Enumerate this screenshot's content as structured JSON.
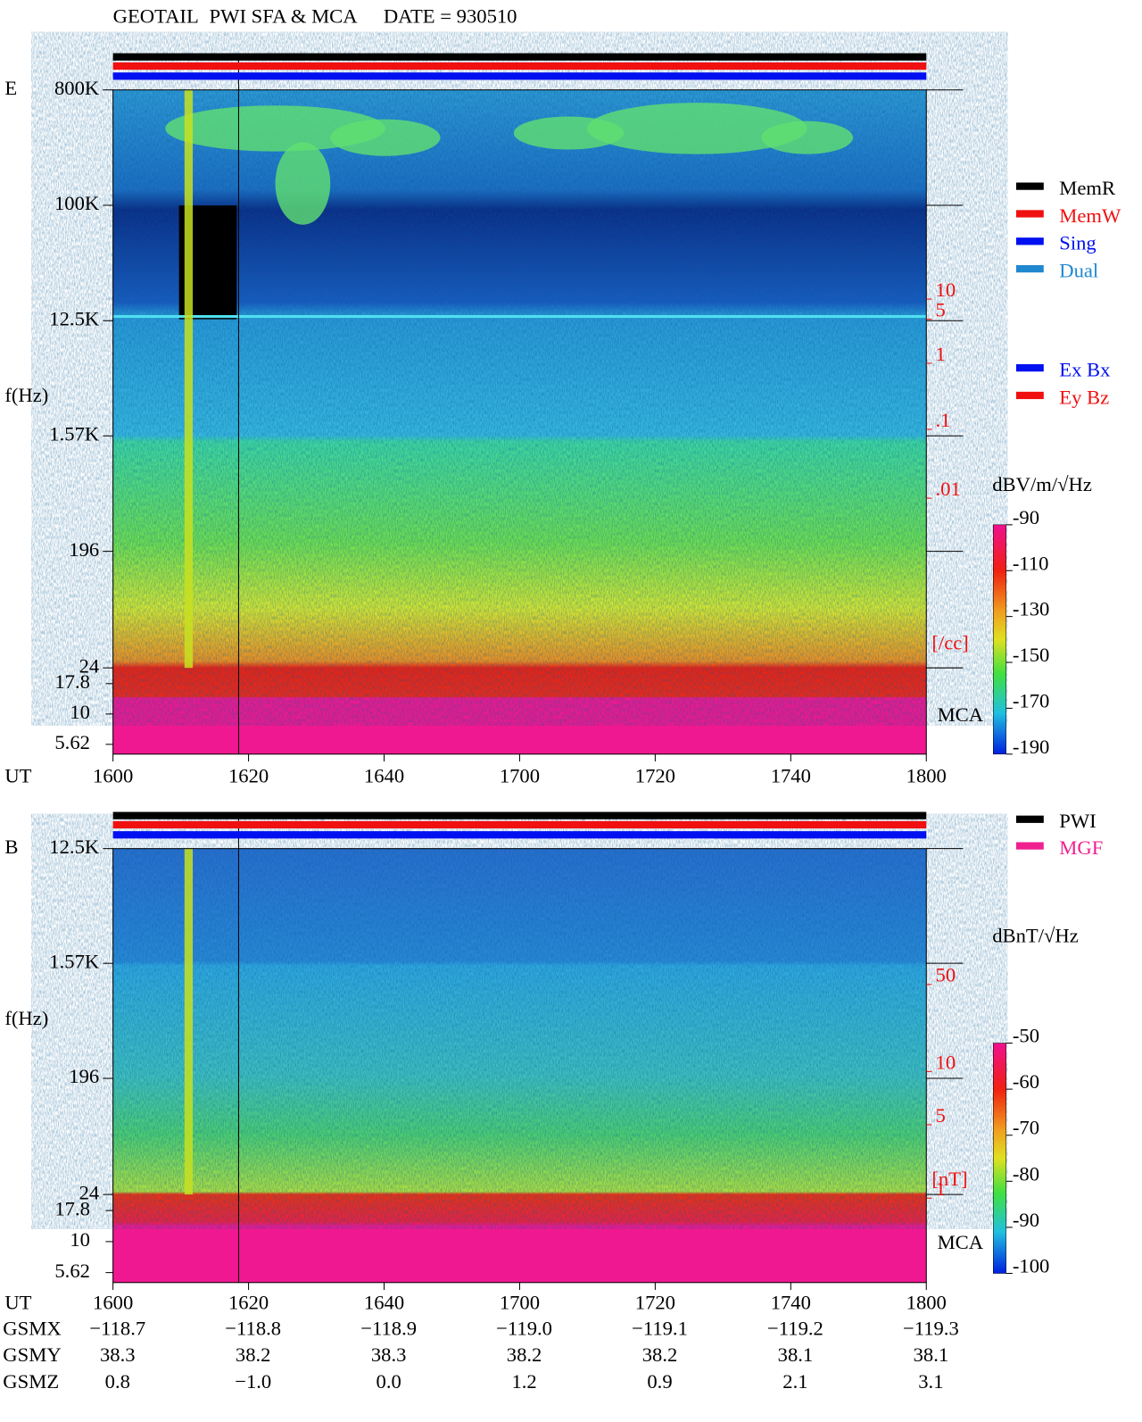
{
  "header": {
    "parts": [
      "GEOTAIL",
      "PWI SFA & MCA",
      "DATE = 930510"
    ]
  },
  "chart_data": [
    {
      "type": "spectrogram",
      "component": "E",
      "y_label": "f(Hz)",
      "x_label": "UT",
      "log_scale": true,
      "ylim": [
        24,
        800000
      ],
      "yticks": [
        {
          "value": 800000,
          "label": "800K"
        },
        {
          "value": 100000,
          "label": "100K"
        },
        {
          "value": 12500,
          "label": "12.5K"
        },
        {
          "value": 1570,
          "label": "1.57K"
        },
        196,
        24
      ],
      "mca_label": "MCA",
      "mca_ylim": [
        4.67,
        24
      ],
      "mca_ticks": [
        17.8,
        10,
        5.62
      ],
      "x_categories": [
        "1600",
        "1620",
        "1640",
        "1700",
        "1720",
        "1740",
        "1800"
      ],
      "density_labels": [
        "10",
        "5",
        "1",
        ".1",
        ".01",
        "[/cc]"
      ],
      "density_color": "#f01010",
      "legend": [
        {
          "name": "MemR",
          "color": "#000000"
        },
        {
          "name": "MemW",
          "color": "#f01010"
        },
        {
          "name": "Sing",
          "color": "#0010f0"
        },
        {
          "name": "Dual",
          "color": "#2088d0"
        }
      ],
      "antenna_legend": [
        {
          "name": "Ex Bx",
          "color": "#0010f0"
        },
        {
          "name": "Ey Bz",
          "color": "#f01010"
        }
      ],
      "colorbar": {
        "label": "dBV/m/√Hz",
        "clim": [
          -190,
          -90
        ],
        "ticks": [
          -90,
          -110,
          -130,
          -150,
          -170,
          -190
        ]
      }
    },
    {
      "type": "spectrogram",
      "component": "B",
      "y_label": "f(Hz)",
      "x_label": "UT",
      "log_scale": true,
      "ylim": [
        24,
        12500
      ],
      "yticks": [
        {
          "value": 12500,
          "label": "12.5K"
        },
        {
          "value": 1570,
          "label": "1.57K"
        },
        196,
        24
      ],
      "mca_label": "MCA",
      "mca_ylim": [
        4.67,
        24
      ],
      "mca_ticks": [
        17.8,
        10,
        5.62
      ],
      "x_categories": [
        "1600",
        "1620",
        "1640",
        "1700",
        "1720",
        "1740",
        "1800"
      ],
      "density_labels": [
        "50",
        "10",
        "5",
        "1",
        "[nT]"
      ],
      "density_color": "#f01010",
      "legend": [
        {
          "name": "PWI",
          "color": "#000000"
        },
        {
          "name": "MGF",
          "color": "#f0208f"
        }
      ],
      "antenna_legend": [],
      "colorbar": {
        "label": "dBnT/√Hz",
        "clim": [
          -100,
          -50
        ],
        "ticks": [
          -50,
          -60,
          -70,
          -80,
          -90,
          -100
        ]
      }
    }
  ],
  "orbit": {
    "rows": [
      {
        "name": "GSMX",
        "values": [
          "−118.7",
          "−118.8",
          "−118.9",
          "−119.0",
          "−119.1",
          "−119.2",
          "−119.3"
        ]
      },
      {
        "name": "GSMY",
        "values": [
          "38.3",
          "38.2",
          "38.3",
          "38.2",
          "38.2",
          "38.1",
          "38.1"
        ]
      },
      {
        "name": "GSMZ",
        "values": [
          "0.8",
          "−1.0",
          "0.0",
          "1.2",
          "0.9",
          "2.1",
          "3.1"
        ]
      }
    ]
  }
}
